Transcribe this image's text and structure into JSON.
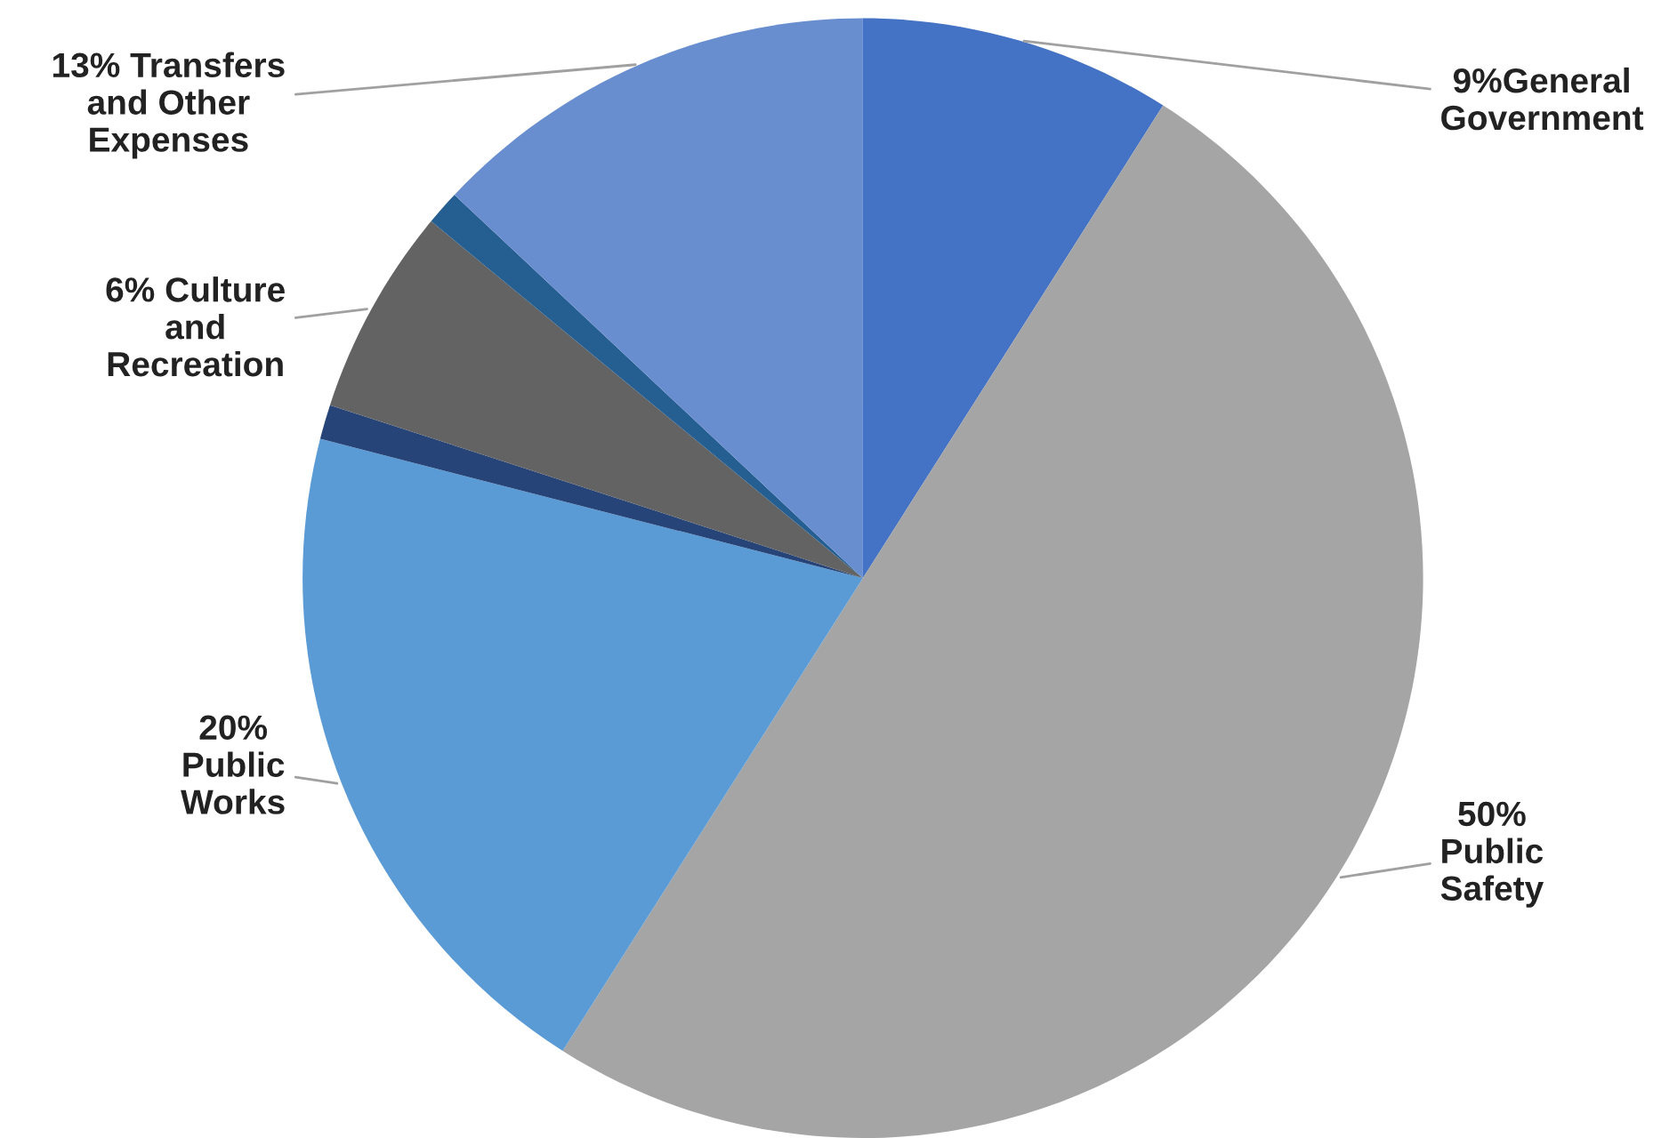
{
  "chart_data": {
    "type": "pie",
    "categories": [
      "9%General\nGovernment",
      "50%\nPublic\nSafety",
      "20%\nPublic\nWorks",
      null,
      "6% Culture\nand\nRecreation",
      null,
      "13% Transfers\nand Other\nExpenses"
    ],
    "values": [
      9,
      50,
      20,
      1,
      6,
      1,
      13
    ],
    "colors": [
      "#4472c4",
      "#a5a5a5",
      "#5b9bd5",
      "#264478",
      "#636363",
      "#255e91",
      "#698ed0"
    ]
  }
}
